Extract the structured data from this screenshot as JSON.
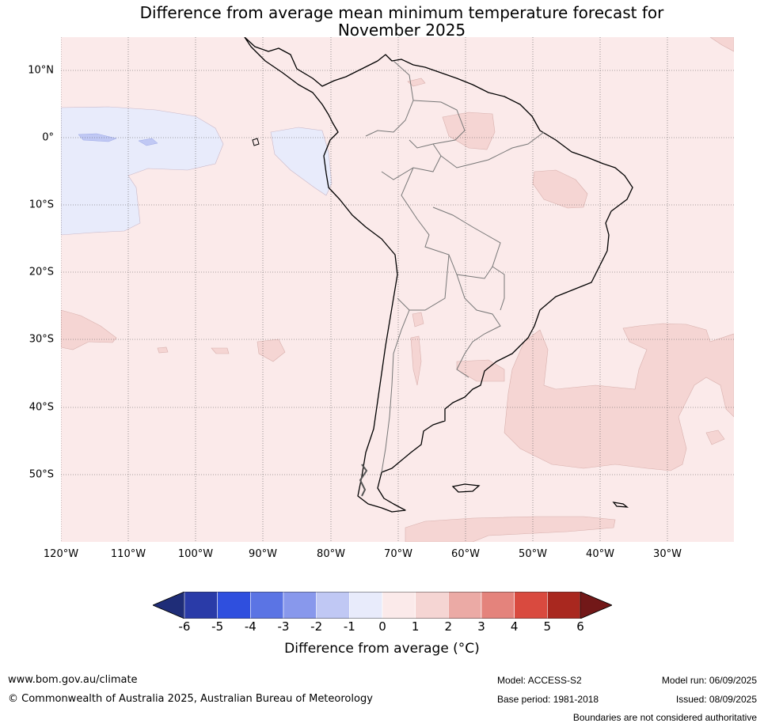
{
  "title_line1": "Difference from average mean minimum temperature forecast for",
  "title_line2": "November 2025",
  "lat_labels": [
    "10°N",
    "0°",
    "10°S",
    "20°S",
    "30°S",
    "40°S",
    "50°S"
  ],
  "lon_labels": [
    "120°W",
    "110°W",
    "100°W",
    "90°W",
    "80°W",
    "70°W",
    "60°W",
    "50°W",
    "40°W",
    "30°W"
  ],
  "colorbar": {
    "ticks": [
      "-6",
      "-5",
      "-4",
      "-3",
      "-2",
      "-1",
      "0",
      "1",
      "2",
      "3",
      "4",
      "5",
      "6"
    ],
    "label": "Difference from average (°C)",
    "under_color": "#1f2d78",
    "over_color": "#721818",
    "colors": [
      "#2a3ba8",
      "#2f4fde",
      "#5b74e4",
      "#8898ec",
      "#c0c8f4",
      "#e8ebfb",
      "#fbeaea",
      "#f5d5d3",
      "#ebaaa5",
      "#e4837c",
      "#d94a3f",
      "#a9281f"
    ]
  },
  "map": {
    "background_color": "#fbeaea",
    "warm_color": "#f5d5d3",
    "cool_color": "#e8ebfb",
    "cooler_color": "#c0c8f4"
  },
  "footer": {
    "website": "www.bom.gov.au/climate",
    "copyright": "© Commonwealth of Australia 2025, Australian Bureau of Meteorology",
    "model": "Model: ACCESS-S2",
    "base_period": "Base period: 1981-2018",
    "model_run": "Model run: 06/09/2025",
    "issued": "Issued: 08/09/2025",
    "disclaimer": "Boundaries are not considered authoritative"
  }
}
